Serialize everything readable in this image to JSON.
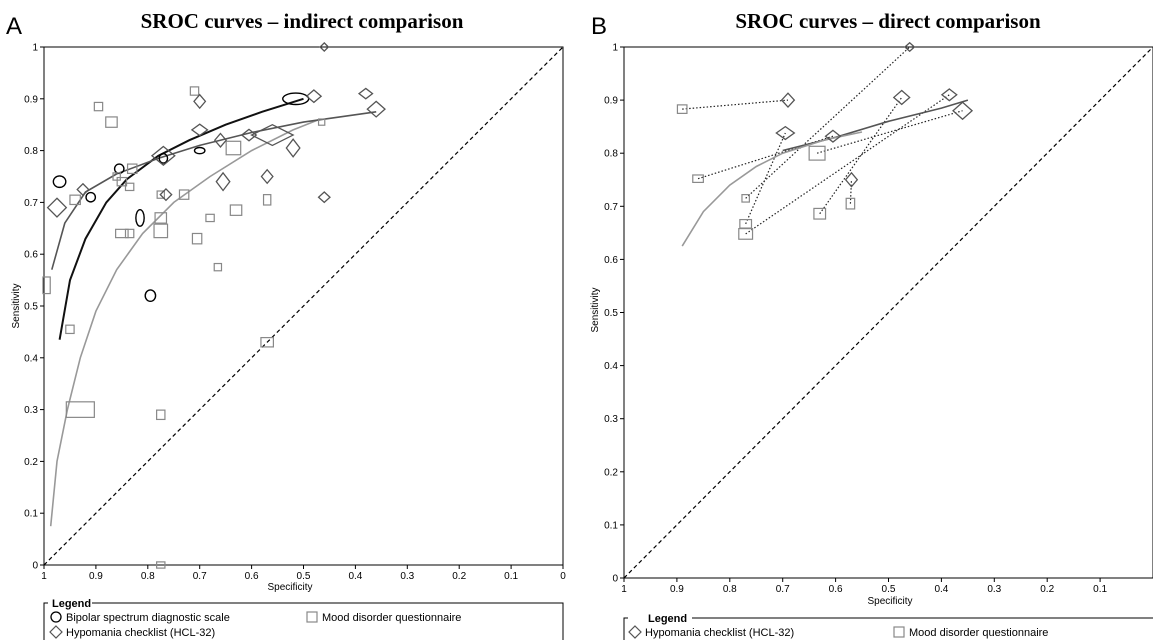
{
  "chart_data": [
    {
      "type": "scatter",
      "panel": "A",
      "title": "SROC curves – indirect comparison",
      "xlabel": "Specificity",
      "ylabel": "Sensitivity",
      "xlim": [
        1,
        0
      ],
      "ylim": [
        0,
        1
      ],
      "x_ticks": [
        "1",
        "0.9",
        "0.8",
        "0.7",
        "0.6",
        "0.5",
        "0.4",
        "0.3",
        "0.2",
        "0.1",
        "0"
      ],
      "y_ticks": [
        "0",
        "0.1",
        "0.2",
        "0.3",
        "0.4",
        "0.5",
        "0.6",
        "0.7",
        "0.8",
        "0.9",
        "1"
      ],
      "diagonal": "dashed",
      "legend": {
        "title": "Legend",
        "entries": [
          {
            "marker": "circle",
            "label": "Bipolar spectrum diagnostic scale"
          },
          {
            "marker": "square",
            "label": "Mood disorder questionnaire"
          },
          {
            "marker": "diamond",
            "label": "Hypomania checklist (HCL-32)"
          }
        ]
      },
      "series": [
        {
          "marker": "circle",
          "color": "#000000",
          "points": [
            {
              "x": 0.97,
              "y": 0.74,
              "w": 0.024,
              "h": 0.022
            },
            {
              "x": 0.91,
              "y": 0.71,
              "w": 0.018,
              "h": 0.018
            },
            {
              "x": 0.855,
              "y": 0.765,
              "w": 0.018,
              "h": 0.018
            },
            {
              "x": 0.77,
              "y": 0.785,
              "w": 0.016,
              "h": 0.018
            },
            {
              "x": 0.815,
              "y": 0.67,
              "w": 0.016,
              "h": 0.032
            },
            {
              "x": 0.7,
              "y": 0.8,
              "w": 0.02,
              "h": 0.012
            },
            {
              "x": 0.515,
              "y": 0.9,
              "w": 0.05,
              "h": 0.022
            },
            {
              "x": 0.795,
              "y": 0.52,
              "w": 0.02,
              "h": 0.022
            }
          ],
          "curve": [
            [
              0.97,
              0.435
            ],
            [
              0.95,
              0.55
            ],
            [
              0.92,
              0.63
            ],
            [
              0.88,
              0.7
            ],
            [
              0.84,
              0.745
            ],
            [
              0.78,
              0.79
            ],
            [
              0.72,
              0.82
            ],
            [
              0.65,
              0.85
            ],
            [
              0.58,
              0.875
            ],
            [
              0.5,
              0.9
            ]
          ]
        },
        {
          "marker": "square",
          "color": "#888888",
          "points": [
            {
              "x": 0.995,
              "y": 0.54,
              "w": 0.014,
              "h": 0.032
            },
            {
              "x": 0.95,
              "y": 0.455,
              "w": 0.016,
              "h": 0.016
            },
            {
              "x": 0.93,
              "y": 0.3,
              "w": 0.054,
              "h": 0.03
            },
            {
              "x": 0.94,
              "y": 0.705,
              "w": 0.02,
              "h": 0.018
            },
            {
              "x": 0.895,
              "y": 0.885,
              "w": 0.016,
              "h": 0.016
            },
            {
              "x": 0.87,
              "y": 0.855,
              "w": 0.022,
              "h": 0.02
            },
            {
              "x": 0.85,
              "y": 0.74,
              "w": 0.018,
              "h": 0.016
            },
            {
              "x": 0.86,
              "y": 0.75,
              "w": 0.014,
              "h": 0.014
            },
            {
              "x": 0.835,
              "y": 0.73,
              "w": 0.016,
              "h": 0.014
            },
            {
              "x": 0.83,
              "y": 0.765,
              "w": 0.018,
              "h": 0.018
            },
            {
              "x": 0.835,
              "y": 0.64,
              "w": 0.016,
              "h": 0.016
            },
            {
              "x": 0.85,
              "y": 0.64,
              "w": 0.024,
              "h": 0.016
            },
            {
              "x": 0.775,
              "y": 0.715,
              "w": 0.014,
              "h": 0.014
            },
            {
              "x": 0.775,
              "y": 0.67,
              "w": 0.022,
              "h": 0.02
            },
            {
              "x": 0.775,
              "y": 0.645,
              "w": 0.026,
              "h": 0.026
            },
            {
              "x": 0.775,
              "y": 0.29,
              "w": 0.016,
              "h": 0.018
            },
            {
              "x": 0.775,
              "y": 0.0,
              "w": 0.016,
              "h": 0.012
            },
            {
              "x": 0.73,
              "y": 0.715,
              "w": 0.018,
              "h": 0.018
            },
            {
              "x": 0.71,
              "y": 0.915,
              "w": 0.016,
              "h": 0.016
            },
            {
              "x": 0.705,
              "y": 0.63,
              "w": 0.018,
              "h": 0.02
            },
            {
              "x": 0.68,
              "y": 0.67,
              "w": 0.016,
              "h": 0.014
            },
            {
              "x": 0.665,
              "y": 0.575,
              "w": 0.014,
              "h": 0.014
            },
            {
              "x": 0.635,
              "y": 0.805,
              "w": 0.028,
              "h": 0.026
            },
            {
              "x": 0.63,
              "y": 0.685,
              "w": 0.022,
              "h": 0.02
            },
            {
              "x": 0.57,
              "y": 0.705,
              "w": 0.014,
              "h": 0.02
            },
            {
              "x": 0.57,
              "y": 0.43,
              "w": 0.024,
              "h": 0.018
            },
            {
              "x": 0.465,
              "y": 0.855,
              "w": 0.012,
              "h": 0.012
            }
          ],
          "curve": [
            [
              0.987,
              0.075
            ],
            [
              0.975,
              0.2
            ],
            [
              0.955,
              0.3
            ],
            [
              0.93,
              0.4
            ],
            [
              0.9,
              0.49
            ],
            [
              0.86,
              0.57
            ],
            [
              0.81,
              0.64
            ],
            [
              0.75,
              0.7
            ],
            [
              0.68,
              0.75
            ],
            [
              0.6,
              0.8
            ],
            [
              0.52,
              0.84
            ],
            [
              0.47,
              0.86
            ]
          ]
        },
        {
          "marker": "diamond",
          "color": "#555555",
          "points": [
            {
              "x": 0.975,
              "y": 0.69,
              "w": 0.036,
              "h": 0.036
            },
            {
              "x": 0.925,
              "y": 0.725,
              "w": 0.022,
              "h": 0.022
            },
            {
              "x": 0.77,
              "y": 0.79,
              "w": 0.044,
              "h": 0.036
            },
            {
              "x": 0.765,
              "y": 0.715,
              "w": 0.022,
              "h": 0.022
            },
            {
              "x": 0.7,
              "y": 0.84,
              "w": 0.03,
              "h": 0.022
            },
            {
              "x": 0.7,
              "y": 0.895,
              "w": 0.022,
              "h": 0.026
            },
            {
              "x": 0.66,
              "y": 0.82,
              "w": 0.022,
              "h": 0.026
            },
            {
              "x": 0.655,
              "y": 0.74,
              "w": 0.026,
              "h": 0.034
            },
            {
              "x": 0.605,
              "y": 0.83,
              "w": 0.028,
              "h": 0.022
            },
            {
              "x": 0.56,
              "y": 0.83,
              "w": 0.08,
              "h": 0.04
            },
            {
              "x": 0.57,
              "y": 0.75,
              "w": 0.022,
              "h": 0.026
            },
            {
              "x": 0.52,
              "y": 0.805,
              "w": 0.026,
              "h": 0.034
            },
            {
              "x": 0.48,
              "y": 0.905,
              "w": 0.028,
              "h": 0.024
            },
            {
              "x": 0.46,
              "y": 0.71,
              "w": 0.022,
              "h": 0.02
            },
            {
              "x": 0.46,
              "y": 1.0,
              "w": 0.016,
              "h": 0.016
            },
            {
              "x": 0.38,
              "y": 0.91,
              "w": 0.026,
              "h": 0.02
            },
            {
              "x": 0.36,
              "y": 0.88,
              "w": 0.034,
              "h": 0.03
            }
          ],
          "curve": [
            [
              0.985,
              0.57
            ],
            [
              0.96,
              0.66
            ],
            [
              0.92,
              0.72
            ],
            [
              0.86,
              0.755
            ],
            [
              0.78,
              0.785
            ],
            [
              0.7,
              0.81
            ],
            [
              0.6,
              0.835
            ],
            [
              0.5,
              0.855
            ],
            [
              0.36,
              0.875
            ]
          ]
        }
      ]
    },
    {
      "type": "scatter",
      "panel": "B",
      "title": "SROC curves – direct comparison",
      "xlabel": "Specificity",
      "ylabel": "Sensitivity",
      "xlim": [
        1,
        0
      ],
      "ylim": [
        0,
        1
      ],
      "x_ticks": [
        "1",
        "0.9",
        "0.8",
        "0.7",
        "0.6",
        "0.5",
        "0.4",
        "0.3",
        "0.2",
        "0.1"
      ],
      "y_ticks": [
        "0",
        "0.1",
        "0.2",
        "0.3",
        "0.4",
        "0.5",
        "0.6",
        "0.7",
        "0.8",
        "0.9",
        "1"
      ],
      "diagonal": "dashed",
      "legend": {
        "title": "Legend",
        "entries": [
          {
            "marker": "diamond",
            "label": "Hypomania checklist (HCL-32)"
          },
          {
            "marker": "square",
            "label": "Mood disorder questionnaire"
          }
        ]
      },
      "series": [
        {
          "marker": "diamond",
          "color": "#555555",
          "points": [
            {
              "x": 0.69,
              "y": 0.9,
              "w": 0.024,
              "h": 0.026
            },
            {
              "x": 0.695,
              "y": 0.838,
              "w": 0.034,
              "h": 0.024
            },
            {
              "x": 0.605,
              "y": 0.832,
              "w": 0.028,
              "h": 0.022
            },
            {
              "x": 0.57,
              "y": 0.75,
              "w": 0.022,
              "h": 0.026
            },
            {
              "x": 0.475,
              "y": 0.905,
              "w": 0.03,
              "h": 0.026
            },
            {
              "x": 0.46,
              "y": 1.0,
              "w": 0.018,
              "h": 0.016
            },
            {
              "x": 0.385,
              "y": 0.91,
              "w": 0.028,
              "h": 0.022
            },
            {
              "x": 0.36,
              "y": 0.88,
              "w": 0.036,
              "h": 0.032
            }
          ],
          "curve": [
            [
              0.7,
              0.805
            ],
            [
              0.6,
              0.83
            ],
            [
              0.5,
              0.86
            ],
            [
              0.4,
              0.885
            ],
            [
              0.35,
              0.9
            ]
          ]
        },
        {
          "marker": "square",
          "color": "#888888",
          "points": [
            {
              "x": 0.89,
              "y": 0.883,
              "w": 0.018,
              "h": 0.016
            },
            {
              "x": 0.86,
              "y": 0.752,
              "w": 0.02,
              "h": 0.014
            },
            {
              "x": 0.77,
              "y": 0.715,
              "w": 0.014,
              "h": 0.014
            },
            {
              "x": 0.77,
              "y": 0.667,
              "w": 0.022,
              "h": 0.016
            },
            {
              "x": 0.77,
              "y": 0.648,
              "w": 0.026,
              "h": 0.02
            },
            {
              "x": 0.635,
              "y": 0.8,
              "w": 0.03,
              "h": 0.026
            },
            {
              "x": 0.63,
              "y": 0.686,
              "w": 0.022,
              "h": 0.02
            },
            {
              "x": 0.572,
              "y": 0.705,
              "w": 0.016,
              "h": 0.02
            }
          ],
          "curve": [
            [
              0.89,
              0.625
            ],
            [
              0.85,
              0.69
            ],
            [
              0.8,
              0.74
            ],
            [
              0.75,
              0.775
            ],
            [
              0.7,
              0.8
            ],
            [
              0.62,
              0.825
            ],
            [
              0.55,
              0.84
            ]
          ]
        }
      ],
      "paired_links": [
        [
          {
            "x": 0.89,
            "y": 0.883
          },
          {
            "x": 0.69,
            "y": 0.9
          }
        ],
        [
          {
            "x": 0.86,
            "y": 0.752
          },
          {
            "x": 0.605,
            "y": 0.832
          }
        ],
        [
          {
            "x": 0.77,
            "y": 0.715
          },
          {
            "x": 0.46,
            "y": 1.0
          }
        ],
        [
          {
            "x": 0.77,
            "y": 0.667
          },
          {
            "x": 0.695,
            "y": 0.838
          }
        ],
        [
          {
            "x": 0.77,
            "y": 0.648
          },
          {
            "x": 0.385,
            "y": 0.91
          }
        ],
        [
          {
            "x": 0.635,
            "y": 0.8
          },
          {
            "x": 0.36,
            "y": 0.88
          }
        ],
        [
          {
            "x": 0.63,
            "y": 0.686
          },
          {
            "x": 0.475,
            "y": 0.905
          }
        ],
        [
          {
            "x": 0.572,
            "y": 0.705
          },
          {
            "x": 0.57,
            "y": 0.75
          }
        ]
      ]
    }
  ]
}
